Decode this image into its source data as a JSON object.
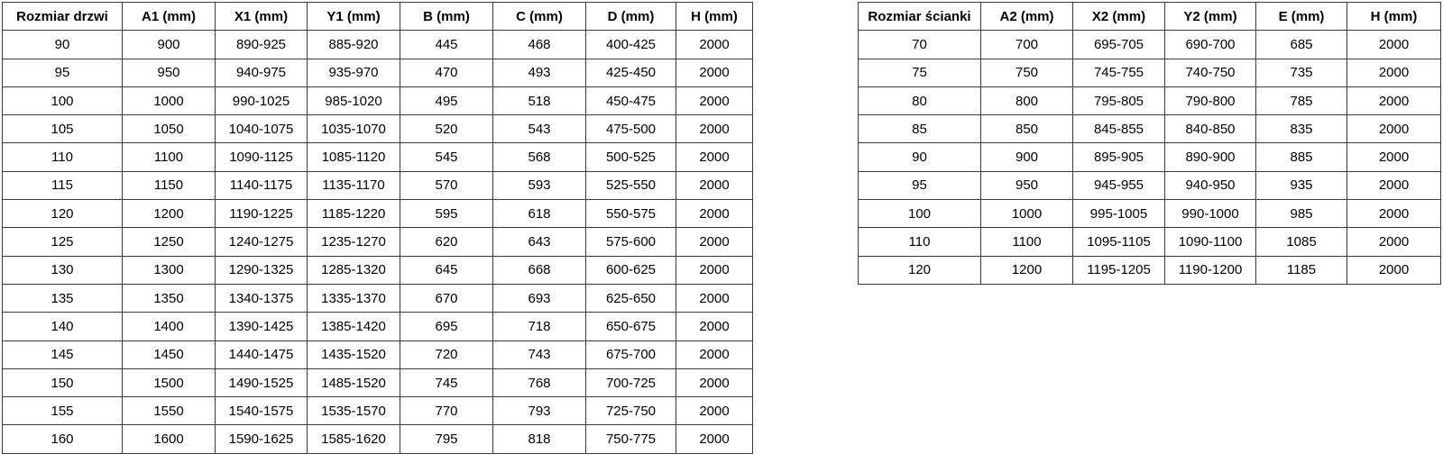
{
  "page": {
    "background": "#ffffff",
    "border_color": "#3b3b3b",
    "text_color": "#000000"
  },
  "tables": {
    "doors": {
      "title": "Rozmiar drzwi",
      "headers": [
        "Rozmiar drzwi",
        "A1 (mm)",
        "X1 (mm)",
        "Y1 (mm)",
        "B (mm)",
        "C (mm)",
        "D (mm)",
        "H (mm)"
      ],
      "rows": [
        [
          "90",
          "900",
          "890-925",
          "885-920",
          "445",
          "468",
          "400-425",
          "2000"
        ],
        [
          "95",
          "950",
          "940-975",
          "935-970",
          "470",
          "493",
          "425-450",
          "2000"
        ],
        [
          "100",
          "1000",
          "990-1025",
          "985-1020",
          "495",
          "518",
          "450-475",
          "2000"
        ],
        [
          "105",
          "1050",
          "1040-1075",
          "1035-1070",
          "520",
          "543",
          "475-500",
          "2000"
        ],
        [
          "110",
          "1100",
          "1090-1125",
          "1085-1120",
          "545",
          "568",
          "500-525",
          "2000"
        ],
        [
          "115",
          "1150",
          "1140-1175",
          "1135-1170",
          "570",
          "593",
          "525-550",
          "2000"
        ],
        [
          "120",
          "1200",
          "1190-1225",
          "1185-1220",
          "595",
          "618",
          "550-575",
          "2000"
        ],
        [
          "125",
          "1250",
          "1240-1275",
          "1235-1270",
          "620",
          "643",
          "575-600",
          "2000"
        ],
        [
          "130",
          "1300",
          "1290-1325",
          "1285-1320",
          "645",
          "668",
          "600-625",
          "2000"
        ],
        [
          "135",
          "1350",
          "1340-1375",
          "1335-1370",
          "670",
          "693",
          "625-650",
          "2000"
        ],
        [
          "140",
          "1400",
          "1390-1425",
          "1385-1420",
          "695",
          "718",
          "650-675",
          "2000"
        ],
        [
          "145",
          "1450",
          "1440-1475",
          "1435-1520",
          "720",
          "743",
          "675-700",
          "2000"
        ],
        [
          "150",
          "1500",
          "1490-1525",
          "1485-1520",
          "745",
          "768",
          "700-725",
          "2000"
        ],
        [
          "155",
          "1550",
          "1540-1575",
          "1535-1570",
          "770",
          "793",
          "725-750",
          "2000"
        ],
        [
          "160",
          "1600",
          "1590-1625",
          "1585-1620",
          "795",
          "818",
          "750-775",
          "2000"
        ]
      ]
    },
    "walls": {
      "title": "Rozmiar ścianki",
      "headers": [
        "Rozmiar ścianki",
        "A2 (mm)",
        "X2 (mm)",
        "Y2 (mm)",
        "E (mm)",
        "H (mm)"
      ],
      "rows": [
        [
          "70",
          "700",
          "695-705",
          "690-700",
          "685",
          "2000"
        ],
        [
          "75",
          "750",
          "745-755",
          "740-750",
          "735",
          "2000"
        ],
        [
          "80",
          "800",
          "795-805",
          "790-800",
          "785",
          "2000"
        ],
        [
          "85",
          "850",
          "845-855",
          "840-850",
          "835",
          "2000"
        ],
        [
          "90",
          "900",
          "895-905",
          "890-900",
          "885",
          "2000"
        ],
        [
          "95",
          "950",
          "945-955",
          "940-950",
          "935",
          "2000"
        ],
        [
          "100",
          "1000",
          "995-1005",
          "990-1000",
          "985",
          "2000"
        ],
        [
          "110",
          "1100",
          "1095-1105",
          "1090-1100",
          "1085",
          "2000"
        ],
        [
          "120",
          "1200",
          "1195-1205",
          "1190-1200",
          "1185",
          "2000"
        ]
      ]
    }
  }
}
